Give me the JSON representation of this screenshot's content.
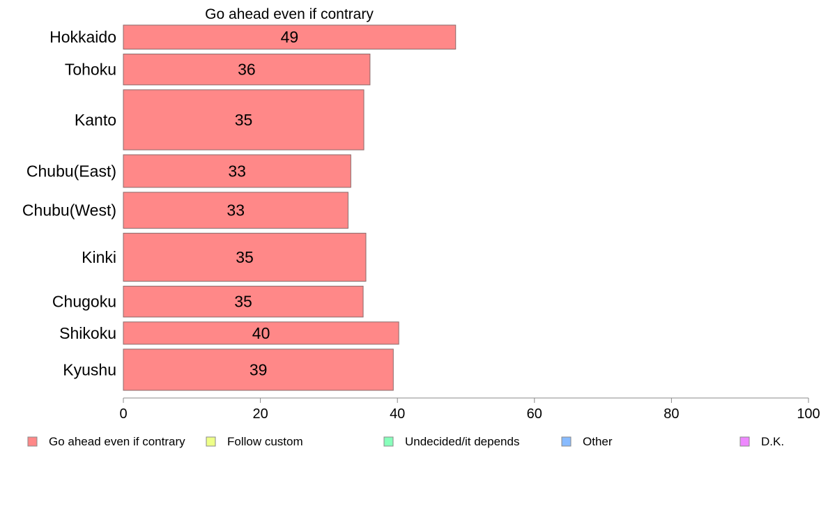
{
  "chart_data": {
    "type": "bar",
    "orientation": "horizontal",
    "title": "Go ahead even if contrary",
    "xlabel": "",
    "ylabel": "",
    "categories": [
      "Hokkaido",
      "Tohoku",
      "Kanto",
      "Chubu(East)",
      "Chubu(West)",
      "Kinki",
      "Chugoku",
      "Shikoku",
      "Kyushu"
    ],
    "series": [
      {
        "name": "Go ahead even if contrary",
        "values": [
          48.5,
          36,
          35.1,
          33.2,
          32.8,
          35.4,
          35,
          40.2,
          39.4
        ],
        "color": "#ff8888"
      }
    ],
    "value_labels": [
      "49",
      "36",
      "35",
      "33",
      "33",
      "35",
      "35",
      "40",
      "39"
    ],
    "bar_widths_relative": [
      0.7,
      0.9,
      1.75,
      0.95,
      1.05,
      1.4,
      0.9,
      0.65,
      1.2
    ],
    "xlim": [
      0,
      100
    ],
    "xticks": [
      "0",
      "20",
      "40",
      "60",
      "80",
      "100"
    ],
    "grid": false,
    "legend_position": "bottom",
    "legend": [
      {
        "label": "Go ahead even if contrary",
        "color": "#ff8888"
      },
      {
        "label": "Follow custom",
        "color": "#eeff88"
      },
      {
        "label": "Undecided/it depends",
        "color": "#88ffbb"
      },
      {
        "label": "Other",
        "color": "#88bbff"
      },
      {
        "label": "D.K.",
        "color": "#ee88ff"
      }
    ]
  }
}
